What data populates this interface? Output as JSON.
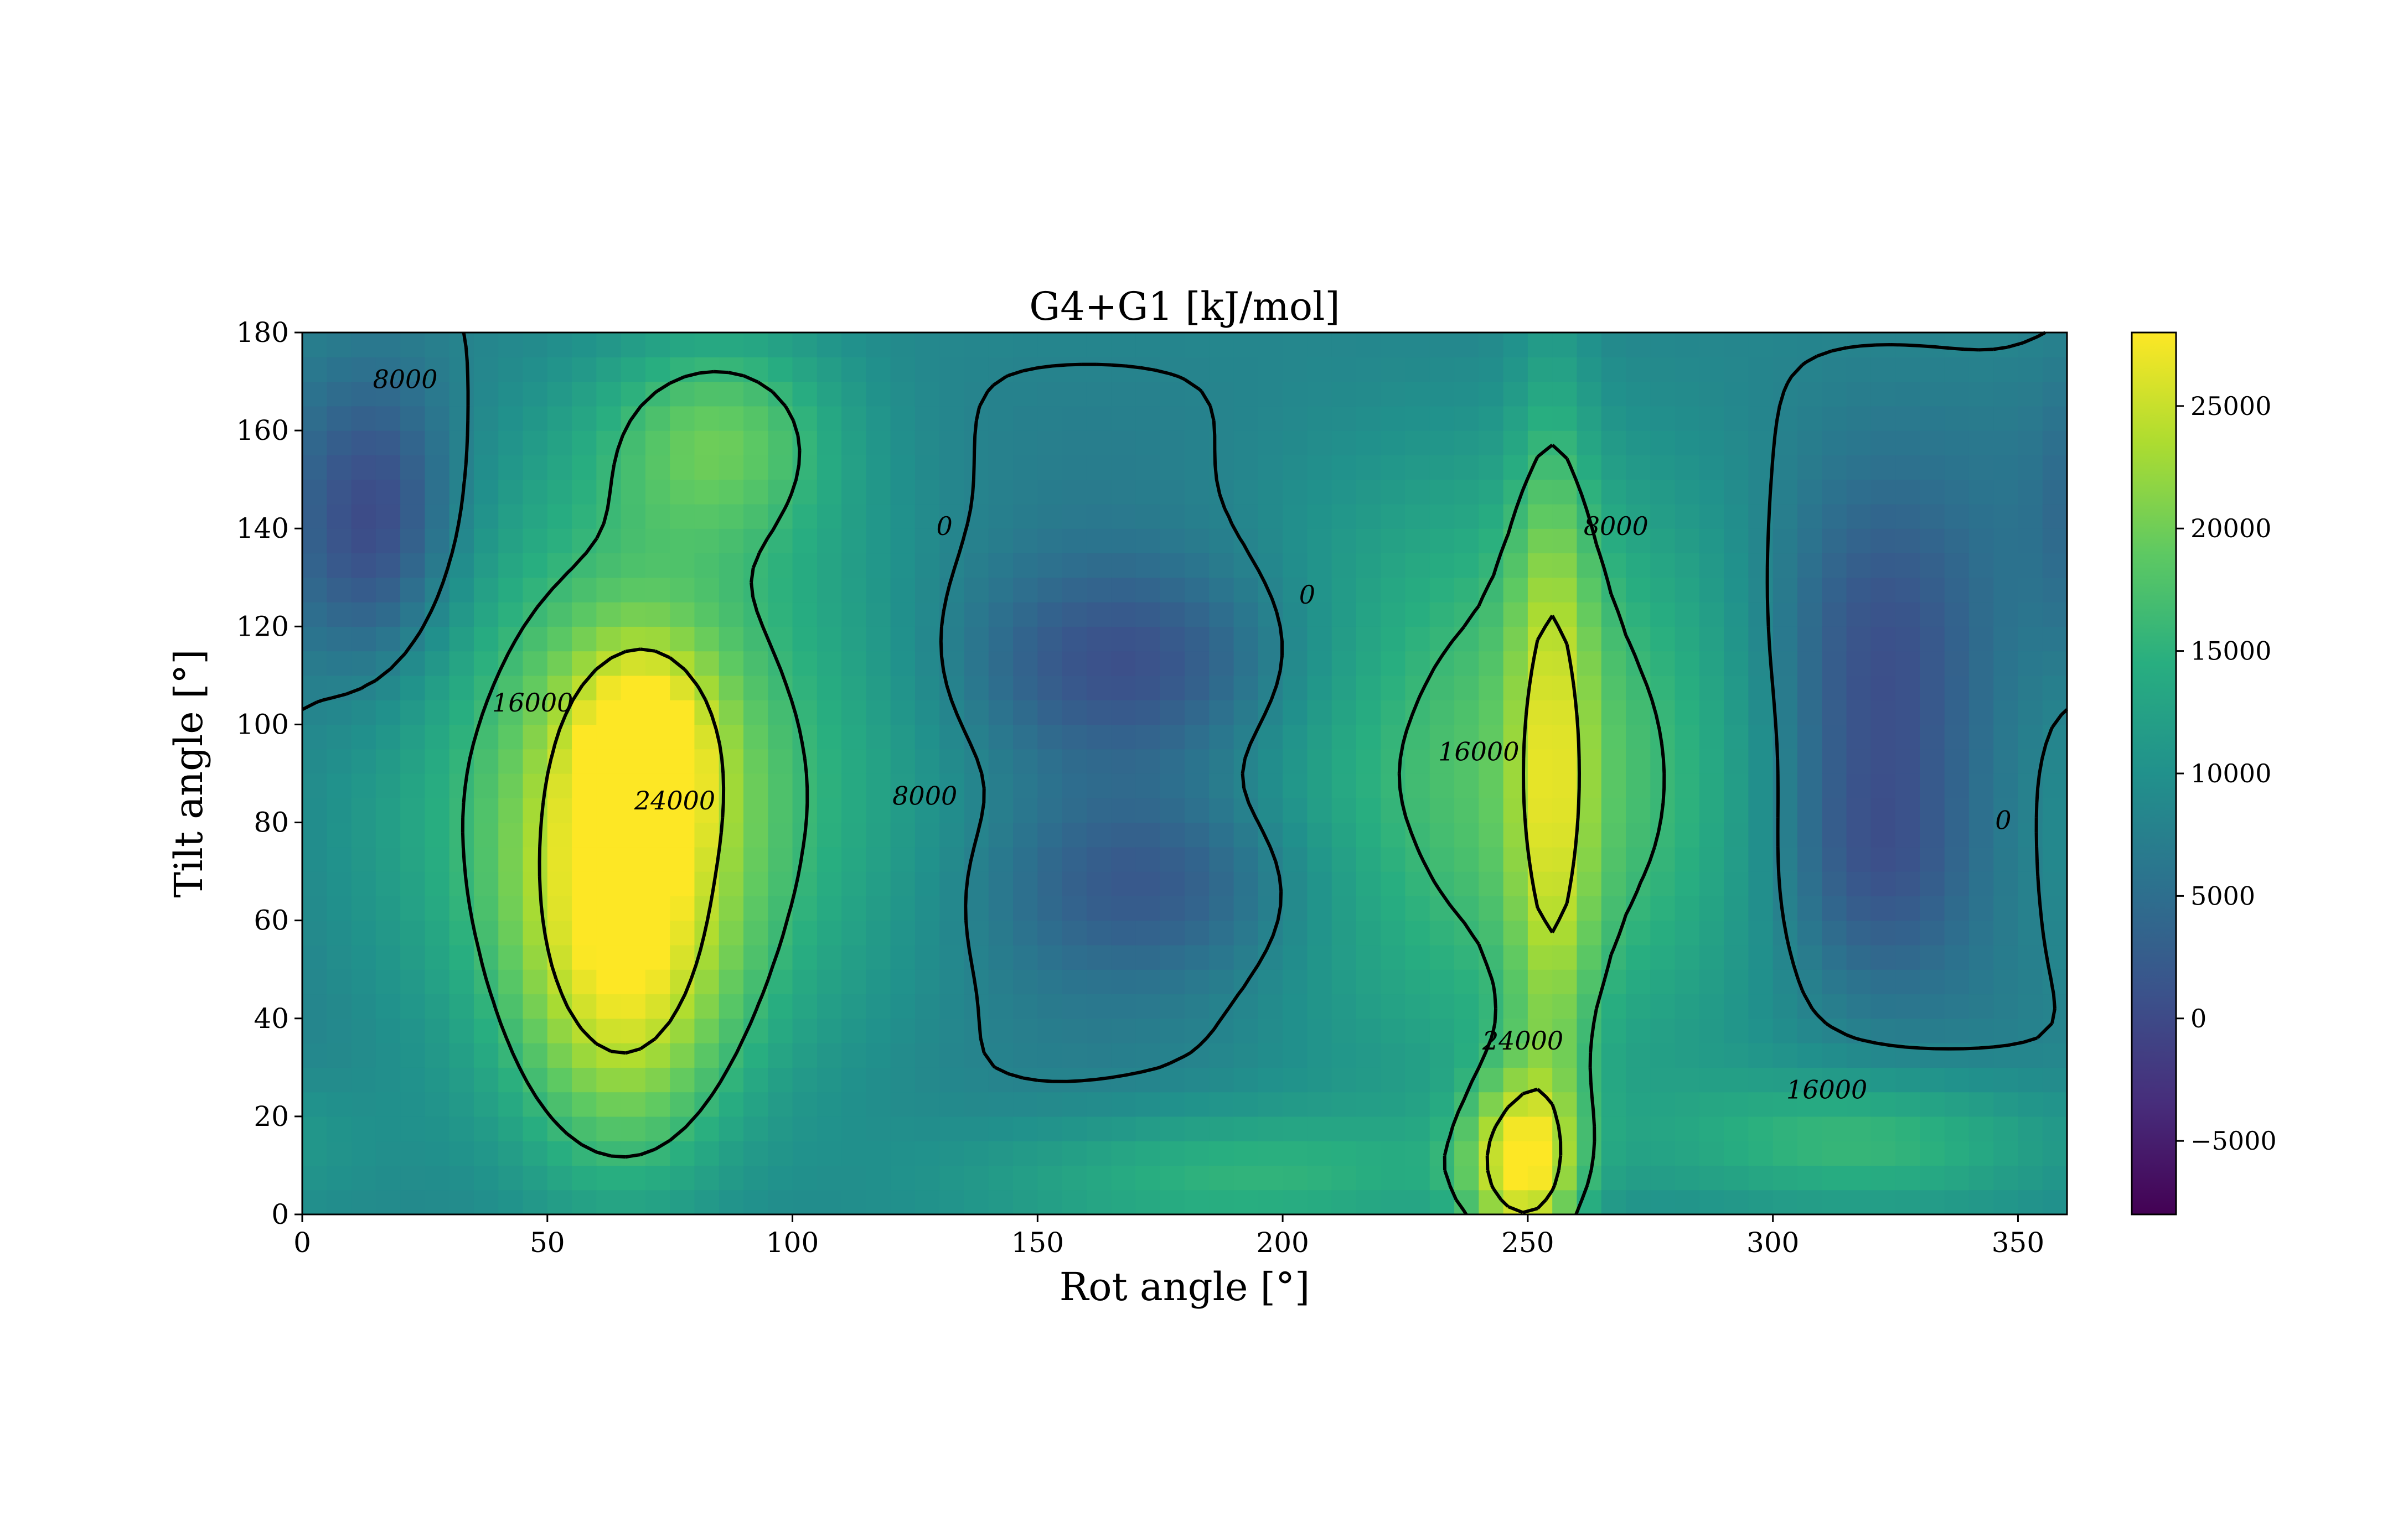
{
  "chart_data": {
    "type": "heatmap",
    "title": "G4+G1 [kJ/mol]",
    "xlabel": "Rot angle [°]",
    "ylabel": "Tilt angle [°]",
    "xlim": [
      0,
      360
    ],
    "ylim": [
      0,
      180
    ],
    "x_ticks": [
      0,
      50,
      100,
      150,
      200,
      250,
      300,
      350
    ],
    "y_ticks": [
      0,
      20,
      40,
      60,
      80,
      100,
      120,
      140,
      160,
      180
    ],
    "grid": false,
    "colormap": "viridis",
    "colorbar": {
      "position": "right",
      "range": [
        -8000,
        28000
      ],
      "ticks": [
        -5000,
        0,
        5000,
        10000,
        15000,
        20000,
        25000
      ]
    },
    "contour_levels": [
      0,
      8000,
      16000,
      24000
    ],
    "contour_labels": [
      {
        "text": "8000",
        "x": 21,
        "y": 170
      },
      {
        "text": "16000",
        "x": 47,
        "y": 104
      },
      {
        "text": "24000",
        "x": 76,
        "y": 84
      },
      {
        "text": "8000",
        "x": 127,
        "y": 85
      },
      {
        "text": "0",
        "x": 131,
        "y": 140
      },
      {
        "text": "0",
        "x": 205,
        "y": 126
      },
      {
        "text": "16000",
        "x": 240,
        "y": 94
      },
      {
        "text": "24000",
        "x": 249,
        "y": 35
      },
      {
        "text": "8000",
        "x": 268,
        "y": 140
      },
      {
        "text": "0",
        "x": 347,
        "y": 80
      },
      {
        "text": "16000",
        "x": 311,
        "y": 25
      }
    ],
    "features": [
      {
        "kind": "min",
        "x": 170,
        "y": 112,
        "v": -7500,
        "sx": 26,
        "sy": 15
      },
      {
        "kind": "min",
        "x": 175,
        "y": 68,
        "v": -6500,
        "sx": 24,
        "sy": 14
      },
      {
        "kind": "min",
        "x": 320,
        "y": 112,
        "v": -8000,
        "sx": 17,
        "sy": 26
      },
      {
        "kind": "min",
        "x": 320,
        "y": 70,
        "v": -6000,
        "sx": 15,
        "sy": 18
      },
      {
        "kind": "min",
        "x": 15,
        "y": 140,
        "v": -9000,
        "sx": 12,
        "sy": 22
      },
      {
        "kind": "max",
        "x": 65,
        "y": 55,
        "v": 14000,
        "sx": 16,
        "sy": 34
      },
      {
        "kind": "max",
        "x": 70,
        "y": 95,
        "v": 10000,
        "sx": 10,
        "sy": 15
      },
      {
        "kind": "max",
        "x": 85,
        "y": 160,
        "v": 9000,
        "sx": 18,
        "sy": 16
      },
      {
        "kind": "max",
        "x": 248,
        "y": 10,
        "v": 15000,
        "sx": 8,
        "sy": 14
      },
      {
        "kind": "max",
        "x": 255,
        "y": 90,
        "v": 9000,
        "sx": 6,
        "sy": 60
      },
      {
        "kind": "max",
        "x": 190,
        "y": 8,
        "v": 7000,
        "sx": 40,
        "sy": 10
      },
      {
        "kind": "max",
        "x": 320,
        "y": 15,
        "v": 8000,
        "sx": 30,
        "sy": 10
      }
    ]
  }
}
